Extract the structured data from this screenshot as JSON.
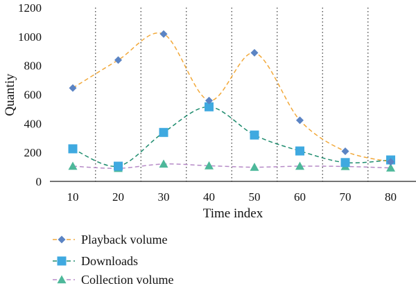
{
  "chart_data": {
    "type": "line",
    "xlabel": "Time index",
    "ylabel": "Quantiy",
    "x": [
      10,
      20,
      30,
      40,
      50,
      60,
      70,
      80
    ],
    "ylim": [
      0,
      1200
    ],
    "yticks": [
      0,
      200,
      400,
      600,
      800,
      1000,
      1200
    ],
    "grid": "vertical-dotted",
    "legend_position": "bottom-left",
    "series": [
      {
        "name": "Playback volume",
        "marker": "diamond",
        "color": "#F2A93B",
        "marker_color": "#5B84C4",
        "values": [
          645,
          838,
          1018,
          558,
          888,
          422,
          208,
          135
        ]
      },
      {
        "name": "Downloads",
        "marker": "square",
        "color": "#1E8C6E",
        "marker_color": "#3FA9E0",
        "values": [
          225,
          105,
          338,
          515,
          320,
          210,
          130,
          148
        ]
      },
      {
        "name": "Collection volume",
        "marker": "triangle",
        "color": "#B68AC7",
        "marker_color": "#4DB89A",
        "values": [
          105,
          90,
          120,
          108,
          98,
          105,
          103,
          93
        ]
      }
    ]
  }
}
